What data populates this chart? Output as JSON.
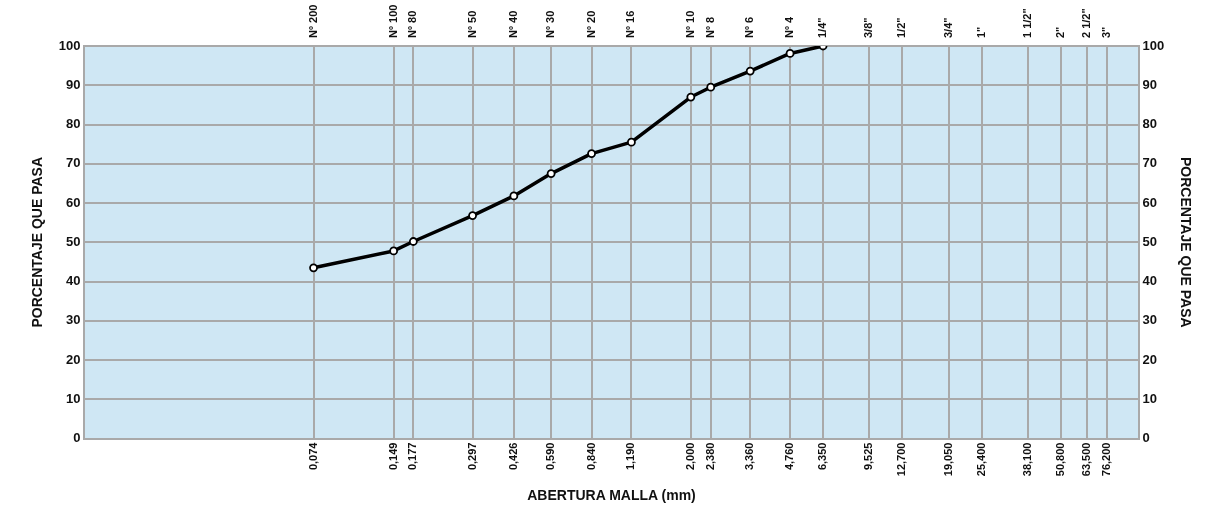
{
  "chart_data": {
    "type": "line",
    "xlabel": "ABERTURA MALLA (mm)",
    "ylabel": "PORCENTAJE QUE PASA",
    "y2label": "PORCENTAJE QUE PASA",
    "log": "x",
    "grid": true,
    "legend": false,
    "marker": "circle",
    "line_style": "solid",
    "x": [
      0.074,
      0.149,
      0.177,
      0.297,
      0.426,
      0.59,
      0.84,
      1.19,
      2,
      2.38,
      3.36,
      4.76,
      6.35
    ],
    "series": [
      {
        "color": "#000000",
        "values": [
          43.5,
          47.8,
          50.2,
          56.8,
          61.8,
          67.5,
          72.6,
          75.5,
          87,
          89.5,
          93.6,
          98.1,
          100
        ]
      }
    ],
    "xlim": [
      0.01,
      100
    ],
    "xticks": [
      {
        "value": 0.074,
        "label": "0,074"
      },
      {
        "value": 0.149,
        "label": "0,149"
      },
      {
        "value": 0.177,
        "label": "0,177"
      },
      {
        "value": 0.297,
        "label": "0,297"
      },
      {
        "value": 0.426,
        "label": "0,426"
      },
      {
        "value": 0.59,
        "label": "0,590"
      },
      {
        "value": 0.84,
        "label": "0,840"
      },
      {
        "value": 1.19,
        "label": "1,190"
      },
      {
        "value": 2,
        "label": "2,000"
      },
      {
        "value": 2.38,
        "label": "2,380"
      },
      {
        "value": 3.36,
        "label": "3,360"
      },
      {
        "value": 4.76,
        "label": "4,760"
      },
      {
        "value": 6.35,
        "label": "6,350"
      },
      {
        "value": 9.525,
        "label": "9,525"
      },
      {
        "value": 12.7,
        "label": "12,700"
      },
      {
        "value": 19.05,
        "label": "19,050"
      },
      {
        "value": 25.4,
        "label": "25,400"
      },
      {
        "value": 38.1,
        "label": "38,100"
      },
      {
        "value": 50.8,
        "label": "50,800"
      },
      {
        "value": 63.5,
        "label": "63,500"
      },
      {
        "value": 76.2,
        "label": "76,200"
      }
    ],
    "annotations": [
      "Nº 200",
      "Nº 100",
      "Nº 80",
      "Nº 50",
      "Nº 40",
      "Nº 30",
      "Nº 20",
      "Nº 16",
      "Nº 10",
      "Nº 8",
      "Nº 6",
      "Nº 4",
      "1/4\"",
      "3/8\"",
      "1/2\"",
      "3/4\"",
      "1\"",
      "1 1/2\"",
      "2\"",
      "2 1/2\"",
      "3\""
    ],
    "ylim": [
      0,
      100
    ],
    "yticks": [
      0,
      10,
      20,
      30,
      40,
      50,
      60,
      70,
      80,
      90,
      100
    ],
    "y2lim": [
      0,
      100
    ],
    "y2ticks": [
      0,
      10,
      20,
      30,
      40,
      50,
      60,
      70,
      80,
      90,
      100
    ]
  }
}
